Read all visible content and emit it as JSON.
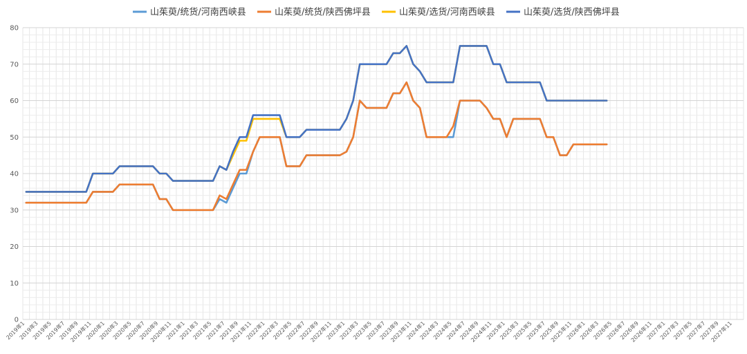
{
  "chart_data": {
    "type": "line",
    "title": "",
    "xlabel": "",
    "ylabel": "",
    "ylim": [
      0,
      80
    ],
    "y_ticks": [
      0,
      10,
      20,
      30,
      40,
      50,
      60,
      70,
      80
    ],
    "grid": true,
    "legend_position": "top",
    "x_tick_labels": [
      "2019年1",
      "2019年3",
      "2019年5",
      "2019年7",
      "2019年9",
      "2019年11",
      "2020年1",
      "2020年3",
      "2020年5",
      "2020年7",
      "2020年9",
      "2020年11",
      "2021年1",
      "2021年3",
      "2021年5",
      "2021年7",
      "2021年9",
      "2021年11",
      "2022年1",
      "2022年3",
      "2022年5",
      "2022年7",
      "2022年9",
      "2022年11",
      "2023年1",
      "2023年3",
      "2023年5",
      "2023年7",
      "2023年9",
      "2023年11",
      "2024年1",
      "2024年3",
      "2024年5",
      "2024年7",
      "2024年9",
      "2024年11",
      "2025年1",
      "2025年3",
      "2025年5",
      "2025年7",
      "2025年9",
      "2025年11",
      "2026年1",
      "2026年3",
      "2026年5",
      "2026年7",
      "2026年9",
      "2026年11",
      "2027年1",
      "2027年3",
      "2027年5",
      "2027年7",
      "2027年9",
      "2027年11"
    ],
    "series": [
      {
        "name": "山茱萸/统货/河南西峡县",
        "color": "#5B9BD5",
        "values": [
          32,
          32,
          32,
          32,
          32,
          32,
          32,
          32,
          32,
          32,
          35,
          35,
          35,
          35,
          37,
          37,
          37,
          37,
          37,
          37,
          33,
          33,
          30,
          30,
          30,
          30,
          30,
          30,
          30,
          33,
          32,
          36,
          40,
          40,
          46,
          50,
          50,
          50,
          50,
          42,
          42,
          42,
          45,
          45,
          45,
          45,
          45,
          45,
          46,
          50,
          60,
          58,
          58,
          58,
          58,
          62,
          62,
          65,
          60,
          58,
          50,
          50,
          50,
          50,
          50,
          60,
          60,
          60,
          60,
          58,
          55,
          55,
          50,
          55,
          55,
          55,
          55,
          55,
          50,
          50,
          45,
          45,
          48,
          48,
          48,
          48,
          48,
          48
        ]
      },
      {
        "name": "山茱萸/统货/陕西佛坪县",
        "color": "#ED7D31",
        "values": [
          32,
          32,
          32,
          32,
          32,
          32,
          32,
          32,
          32,
          32,
          35,
          35,
          35,
          35,
          37,
          37,
          37,
          37,
          37,
          37,
          33,
          33,
          30,
          30,
          30,
          30,
          30,
          30,
          30,
          34,
          33,
          37,
          41,
          41,
          46,
          50,
          50,
          50,
          50,
          42,
          42,
          42,
          45,
          45,
          45,
          45,
          45,
          45,
          46,
          50,
          60,
          58,
          58,
          58,
          58,
          62,
          62,
          65,
          60,
          58,
          50,
          50,
          50,
          50,
          53,
          60,
          60,
          60,
          60,
          58,
          55,
          55,
          50,
          55,
          55,
          55,
          55,
          55,
          50,
          50,
          45,
          45,
          48,
          48,
          48,
          48,
          48,
          48
        ]
      },
      {
        "name": "山茱萸/选货/河南西峡县",
        "color": "#FFC000",
        "values": [
          35,
          35,
          35,
          35,
          35,
          35,
          35,
          35,
          35,
          35,
          40,
          40,
          40,
          40,
          42,
          42,
          42,
          42,
          42,
          42,
          40,
          40,
          38,
          38,
          38,
          38,
          38,
          38,
          38,
          42,
          41,
          45,
          49,
          49,
          55,
          55,
          55,
          55,
          55,
          50,
          50,
          50,
          52,
          52,
          52,
          52,
          52,
          52,
          55,
          60,
          70,
          70,
          70,
          70,
          70,
          73,
          73,
          75,
          70,
          68,
          65,
          65,
          65,
          65,
          65,
          75,
          75,
          75,
          75,
          75,
          70,
          70,
          65,
          65,
          65,
          65,
          65,
          65,
          60,
          60,
          60,
          60,
          60,
          60,
          60,
          60,
          60,
          60
        ]
      },
      {
        "name": "山茱萸/选货/陕西佛坪县",
        "color": "#4472C4",
        "values": [
          35,
          35,
          35,
          35,
          35,
          35,
          35,
          35,
          35,
          35,
          40,
          40,
          40,
          40,
          42,
          42,
          42,
          42,
          42,
          42,
          40,
          40,
          38,
          38,
          38,
          38,
          38,
          38,
          38,
          42,
          41,
          46,
          50,
          50,
          56,
          56,
          56,
          56,
          56,
          50,
          50,
          50,
          52,
          52,
          52,
          52,
          52,
          52,
          55,
          60,
          70,
          70,
          70,
          70,
          70,
          73,
          73,
          75,
          70,
          68,
          65,
          65,
          65,
          65,
          65,
          75,
          75,
          75,
          75,
          75,
          70,
          70,
          65,
          65,
          65,
          65,
          65,
          65,
          60,
          60,
          60,
          60,
          60,
          60,
          60,
          60,
          60,
          60
        ]
      }
    ]
  }
}
